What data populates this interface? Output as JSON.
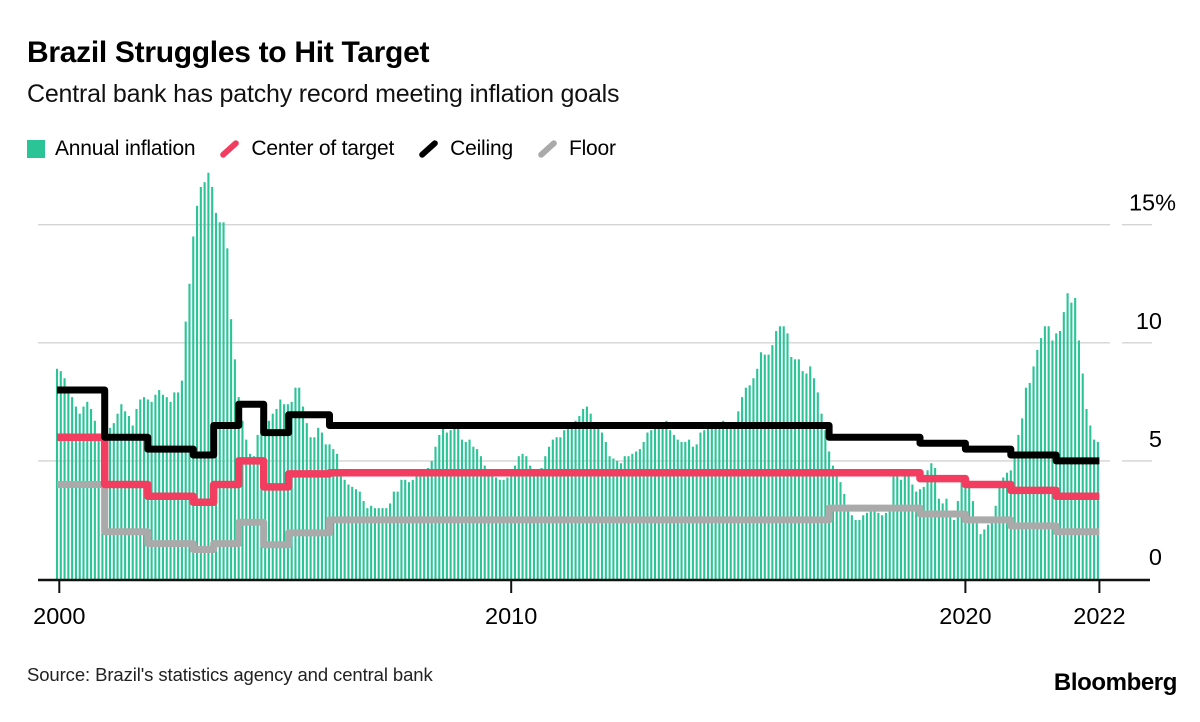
{
  "page": {
    "title": "Brazil Struggles to Hit Target",
    "subtitle": "Central bank has patchy record meeting inflation goals",
    "source": "Source: Brazil's statistics agency and central bank",
    "brand": "Bloomberg"
  },
  "colors": {
    "bar": "#2ac496",
    "center_of_target": "#f23d60",
    "ceiling": "#000000",
    "floor": "#aaaaaa",
    "grid": "#d4d4d4",
    "axis": "#111111"
  },
  "chart_data": {
    "type": "bar",
    "title": "Brazil Struggles to Hit Target",
    "subtitle": "Central bank has patchy record meeting inflation goals",
    "unit": "%",
    "grid": true,
    "legend_position": "top",
    "ylim": [
      0,
      17.6
    ],
    "x_range_years": [
      2000,
      2023
    ],
    "y_ticks": [
      {
        "value": 0,
        "label": "0",
        "gridline": false
      },
      {
        "value": 5,
        "label": "5",
        "gridline": true
      },
      {
        "value": 10,
        "label": "10",
        "gridline": true
      },
      {
        "value": 15,
        "label": "15%",
        "gridline": true
      }
    ],
    "x_ticks": [
      {
        "year": 2000.05,
        "label": "2000"
      },
      {
        "year": 2010.0,
        "label": "2010"
      },
      {
        "year": 2020.0,
        "label": "2020"
      },
      {
        "year": 2022.95,
        "label": "2022"
      }
    ],
    "bar_series": {
      "name": "Annual inflation",
      "color": "#2ac496",
      "start_year": 2000,
      "interval_months": 1,
      "values": [
        8.9,
        8.8,
        8.5,
        8.0,
        7.7,
        7.3,
        7.0,
        7.3,
        7.5,
        7.2,
        6.7,
        6.0,
        5.9,
        6.3,
        6.4,
        6.6,
        7.0,
        7.4,
        7.1,
        6.9,
        6.5,
        7.2,
        7.6,
        7.7,
        7.6,
        7.5,
        7.8,
        8.0,
        7.8,
        7.7,
        7.5,
        7.9,
        7.9,
        8.4,
        10.9,
        12.5,
        14.5,
        15.8,
        16.6,
        16.8,
        17.2,
        16.6,
        15.5,
        15.1,
        15.1,
        14.0,
        11.0,
        9.3,
        7.7,
        6.7,
        5.9,
        5.3,
        5.2,
        6.1,
        6.8,
        7.2,
        6.7,
        7.0,
        7.2,
        7.6,
        7.4,
        7.4,
        7.5,
        8.1,
        8.1,
        7.3,
        6.6,
        6.0,
        6.0,
        6.4,
        6.2,
        5.7,
        5.7,
        5.5,
        5.3,
        4.6,
        4.2,
        4.0,
        3.9,
        3.8,
        3.7,
        3.3,
        3.0,
        3.1,
        3.0,
        3.0,
        3.0,
        3.0,
        3.2,
        3.7,
        3.7,
        4.2,
        4.2,
        4.1,
        4.2,
        4.5,
        4.6,
        4.6,
        4.7,
        5.0,
        5.6,
        6.1,
        6.4,
        6.2,
        6.3,
        6.4,
        6.4,
        5.9,
        5.8,
        5.9,
        5.6,
        5.5,
        5.2,
        4.8,
        4.5,
        4.4,
        4.3,
        4.2,
        4.2,
        4.3,
        4.6,
        4.8,
        5.2,
        5.3,
        5.2,
        4.8,
        4.6,
        4.5,
        4.7,
        5.2,
        5.6,
        5.9,
        6.0,
        6.0,
        6.3,
        6.5,
        6.6,
        6.7,
        6.9,
        7.2,
        7.3,
        7.0,
        6.6,
        6.5,
        6.2,
        5.8,
        5.2,
        5.1,
        5.0,
        4.9,
        5.2,
        5.2,
        5.3,
        5.4,
        5.5,
        5.8,
        6.2,
        6.3,
        6.6,
        6.5,
        6.5,
        6.7,
        6.3,
        6.1,
        5.9,
        5.8,
        5.8,
        5.9,
        5.6,
        5.7,
        6.2,
        6.3,
        6.4,
        6.5,
        6.5,
        6.5,
        6.7,
        6.6,
        6.6,
        6.4,
        7.1,
        7.7,
        8.1,
        8.2,
        8.5,
        8.9,
        9.6,
        9.5,
        9.5,
        9.9,
        10.5,
        10.7,
        10.7,
        10.4,
        9.4,
        9.3,
        9.3,
        8.8,
        8.7,
        9.0,
        8.5,
        7.9,
        7.0,
        6.3,
        5.4,
        4.8,
        4.6,
        4.1,
        3.6,
        3.0,
        2.7,
        2.5,
        2.5,
        2.7,
        2.8,
        2.9,
        2.9,
        2.8,
        2.7,
        2.8,
        2.9,
        4.4,
        4.5,
        4.2,
        4.5,
        4.6,
        4.0,
        3.7,
        3.8,
        3.9,
        4.6,
        4.9,
        4.7,
        3.4,
        3.2,
        3.4,
        2.9,
        2.5,
        3.3,
        4.3,
        4.2,
        4.0,
        3.3,
        2.4,
        1.9,
        2.1,
        2.3,
        2.4,
        3.1,
        3.9,
        4.3,
        4.5,
        4.6,
        5.2,
        6.1,
        6.8,
        8.1,
        8.3,
        9.0,
        9.7,
        10.2,
        10.7,
        10.7,
        10.1,
        10.4,
        10.5,
        11.3,
        12.1,
        11.7,
        11.9,
        10.1,
        8.7,
        7.2,
        6.5,
        5.9,
        5.8
      ]
    },
    "line_series": [
      {
        "name": "Center of target",
        "color": "#f23d60",
        "stroke_width": 7.5,
        "z": 2,
        "steps": [
          [
            2000.0,
            2001.05,
            6.0
          ],
          [
            2001.05,
            2002.0,
            4.0
          ],
          [
            2002.0,
            2003.0,
            3.5
          ],
          [
            2003.0,
            2003.45,
            3.25
          ],
          [
            2003.45,
            2004.0,
            4.0
          ],
          [
            2004.0,
            2004.55,
            5.0
          ],
          [
            2004.55,
            2005.1,
            3.9
          ],
          [
            2005.1,
            2006.0,
            4.45
          ],
          [
            2006.0,
            2017.0,
            4.5
          ],
          [
            2017.0,
            2019.0,
            4.5
          ],
          [
            2019.0,
            2020.0,
            4.25
          ],
          [
            2020.0,
            2021.0,
            4.0
          ],
          [
            2021.0,
            2022.0,
            3.75
          ],
          [
            2022.0,
            2022.95,
            3.5
          ]
        ]
      },
      {
        "name": "Ceiling",
        "color": "#000000",
        "stroke_width": 7,
        "z": 3,
        "steps": [
          [
            2000.0,
            2001.05,
            8.0
          ],
          [
            2001.05,
            2002.0,
            6.0
          ],
          [
            2002.0,
            2003.0,
            5.5
          ],
          [
            2003.0,
            2003.45,
            5.25
          ],
          [
            2003.45,
            2004.0,
            6.5
          ],
          [
            2004.0,
            2004.55,
            7.4
          ],
          [
            2004.55,
            2005.1,
            6.2
          ],
          [
            2005.1,
            2006.0,
            6.95
          ],
          [
            2006.0,
            2017.0,
            6.5
          ],
          [
            2017.0,
            2019.0,
            6.0
          ],
          [
            2019.0,
            2020.0,
            5.75
          ],
          [
            2020.0,
            2021.0,
            5.5
          ],
          [
            2021.0,
            2022.0,
            5.25
          ],
          [
            2022.0,
            2022.95,
            5.0
          ]
        ]
      },
      {
        "name": "Floor",
        "color": "#aaaaaa",
        "stroke_width": 7,
        "z": 1,
        "steps": [
          [
            2000.0,
            2001.05,
            4.0
          ],
          [
            2001.05,
            2002.0,
            2.0
          ],
          [
            2002.0,
            2003.0,
            1.5
          ],
          [
            2003.0,
            2003.45,
            1.25
          ],
          [
            2003.45,
            2004.0,
            1.5
          ],
          [
            2004.0,
            2004.55,
            2.4
          ],
          [
            2004.55,
            2005.1,
            1.45
          ],
          [
            2005.1,
            2006.0,
            1.95
          ],
          [
            2006.0,
            2017.0,
            2.5
          ],
          [
            2017.0,
            2019.0,
            3.0
          ],
          [
            2019.0,
            2020.0,
            2.75
          ],
          [
            2020.0,
            2021.0,
            2.5
          ],
          [
            2021.0,
            2022.0,
            2.25
          ],
          [
            2022.0,
            2022.95,
            2.0
          ]
        ]
      }
    ]
  }
}
